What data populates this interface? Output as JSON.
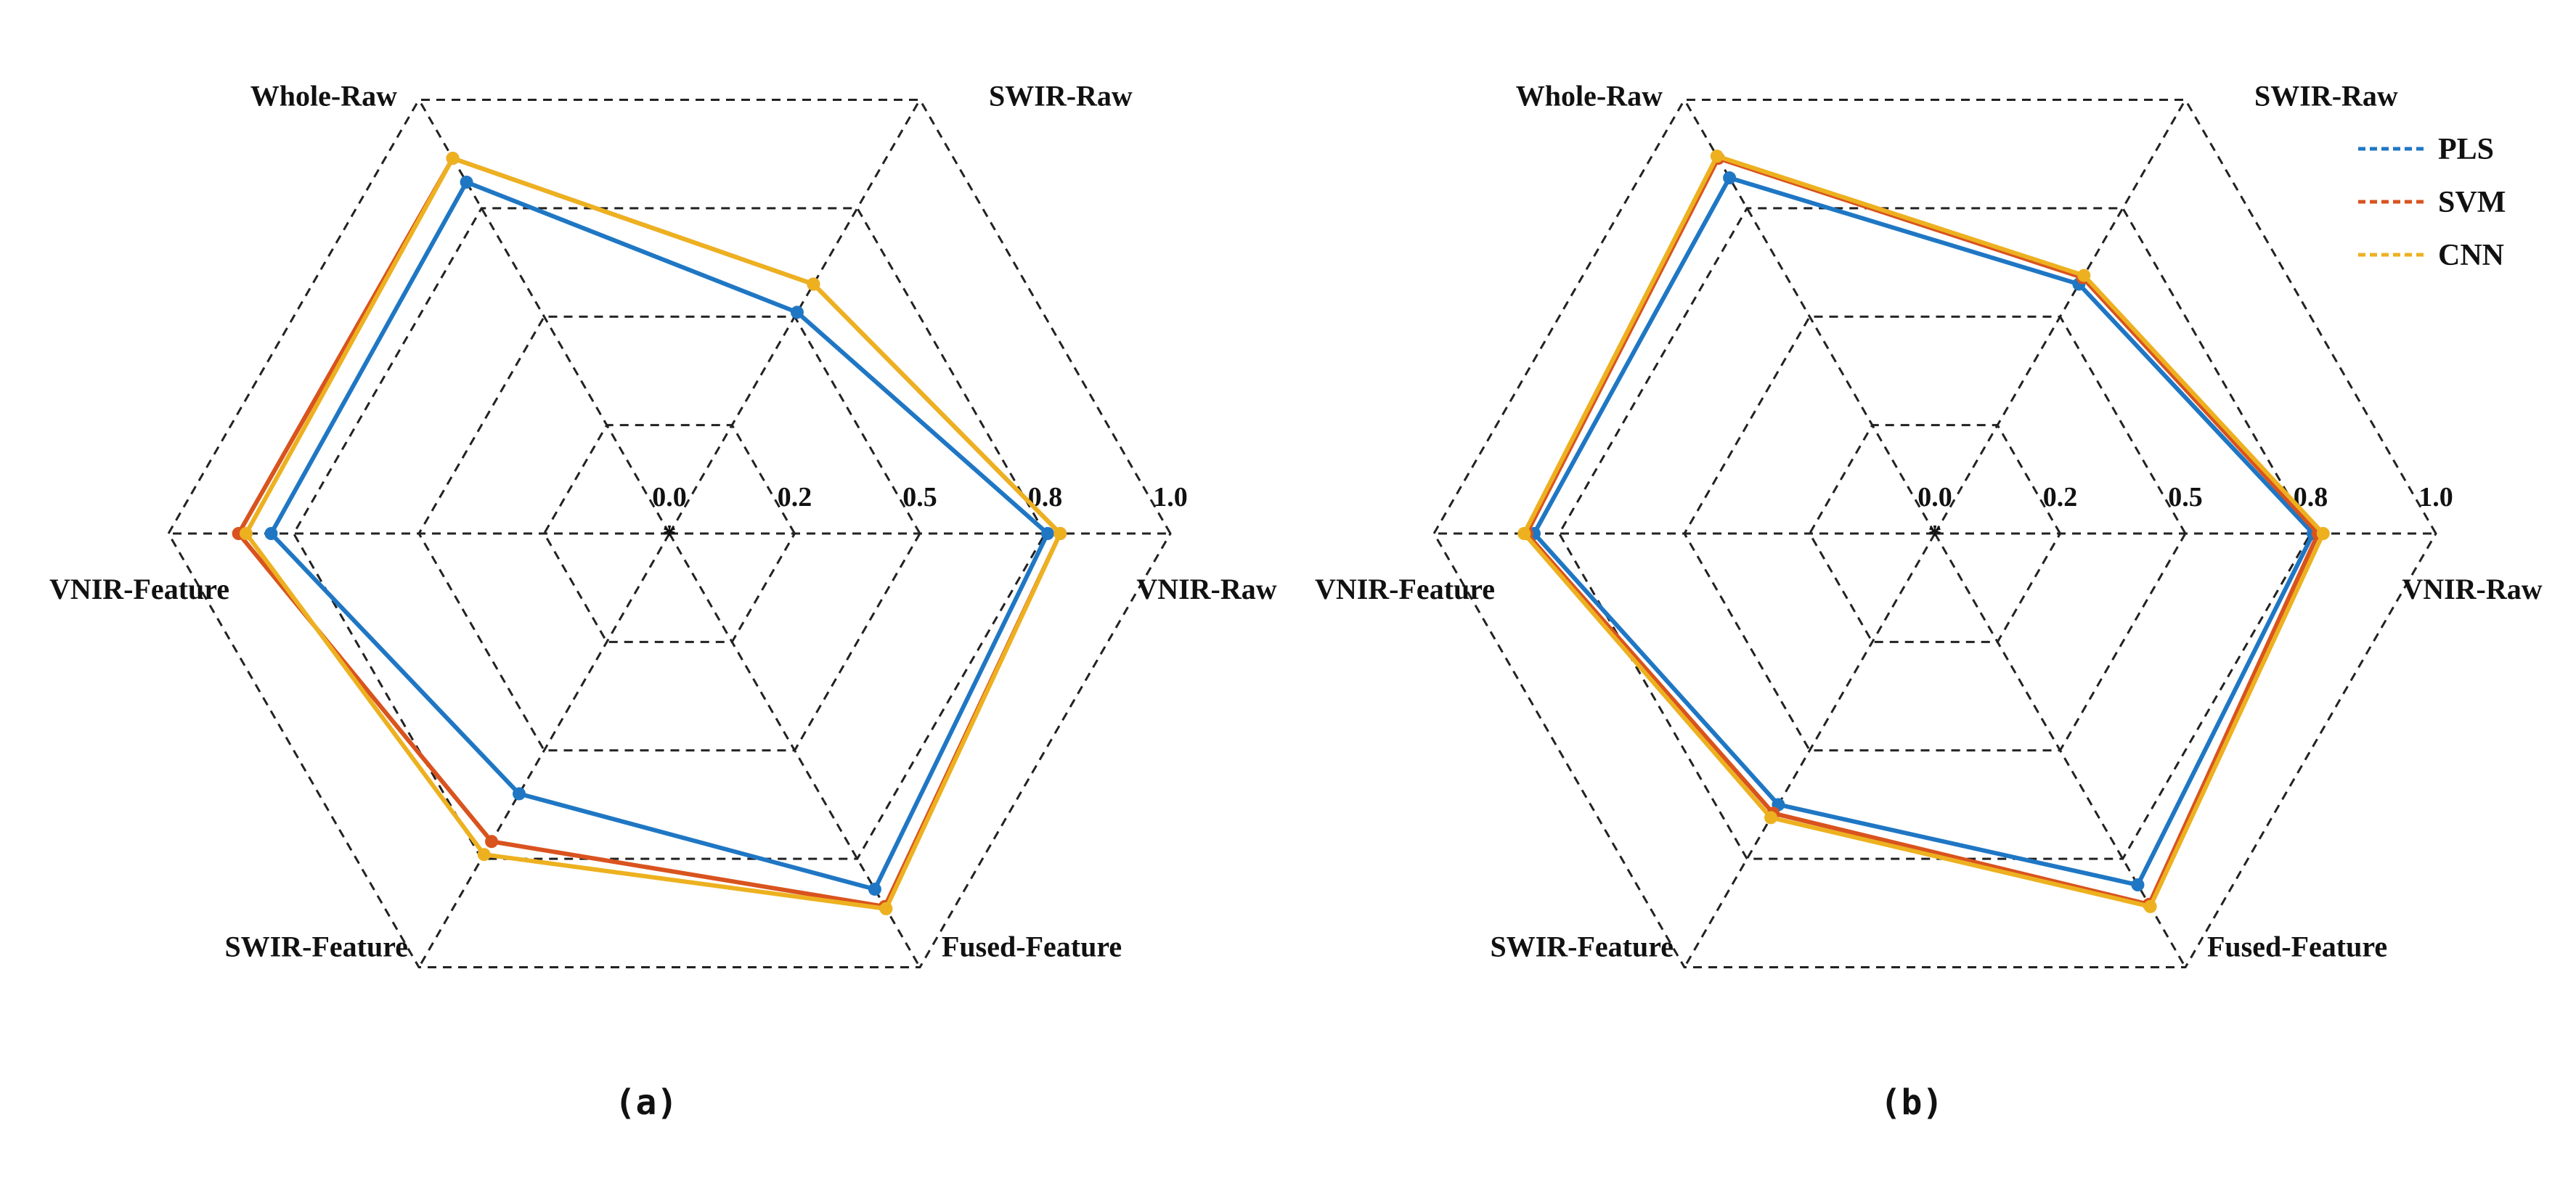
{
  "colors": {
    "PLS": "#1f77c4",
    "SVM": "#d9531e",
    "CNN": "#edb120",
    "grid": "#222222"
  },
  "chart_data": [
    {
      "type": "radar",
      "panel_label": "(a)",
      "axes": [
        "VNIR-Raw",
        "SWIR-Raw",
        "Whole-Raw",
        "VNIR-Feature",
        "SWIR-Feature",
        "Fused-Feature"
      ],
      "tick_labels": [
        "0.0",
        "0.2",
        "0.5",
        "0.8",
        "1.0"
      ],
      "series": [
        {
          "name": "PLS",
          "values": [
            0.755,
            0.51,
            0.81,
            0.795,
            0.6,
            0.82
          ]
        },
        {
          "name": "SVM",
          "values": [
            0.78,
            0.575,
            0.865,
            0.86,
            0.71,
            0.86
          ]
        },
        {
          "name": "CNN",
          "values": [
            0.78,
            0.575,
            0.865,
            0.845,
            0.74,
            0.865
          ]
        }
      ],
      "legend": null
    },
    {
      "type": "radar",
      "panel_label": "(b)",
      "axes": [
        "VNIR-Raw",
        "SWIR-Raw",
        "Whole-Raw",
        "VNIR-Feature",
        "SWIR-Feature",
        "Fused-Feature"
      ],
      "tick_labels": [
        "0.0",
        "0.2",
        "0.5",
        "0.8",
        "1.0"
      ],
      "series": [
        {
          "name": "PLS",
          "values": [
            0.755,
            0.575,
            0.82,
            0.8,
            0.625,
            0.81
          ]
        },
        {
          "name": "SVM",
          "values": [
            0.765,
            0.59,
            0.865,
            0.815,
            0.645,
            0.855
          ]
        },
        {
          "name": "CNN",
          "values": [
            0.775,
            0.595,
            0.87,
            0.82,
            0.655,
            0.86
          ]
        }
      ],
      "legend": {
        "position": "top-right",
        "items": [
          "PLS",
          "SVM",
          "CNN"
        ]
      }
    }
  ]
}
